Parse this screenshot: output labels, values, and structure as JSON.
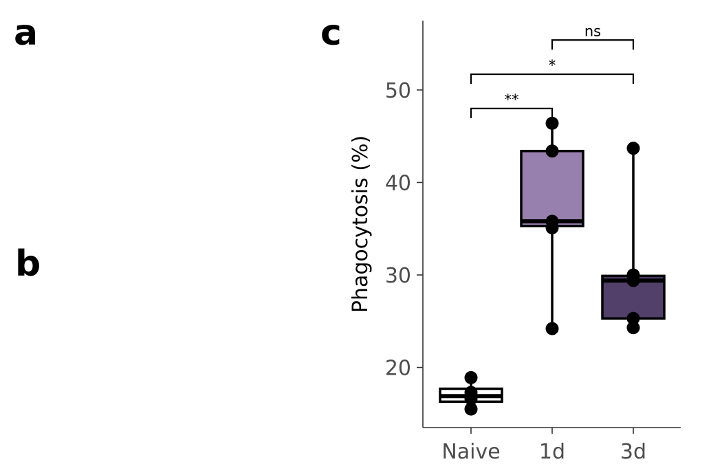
{
  "panels": {
    "a": "a",
    "b": "b",
    "c": "c"
  },
  "colors": {
    "naive": "#ffffff",
    "d1": "#9880ae",
    "d3": "#52406b",
    "outline": "#000000",
    "axis": "#333333",
    "tick_text": "#4d4d4d"
  },
  "chart_data": {
    "type": "box",
    "title": "",
    "xlabel": "",
    "ylabel": "Phagocytosis (%)",
    "categories": [
      "Naive",
      "1d",
      "3d"
    ],
    "ylim": [
      13.5,
      57.5
    ],
    "yticks": [
      20,
      30,
      40,
      50
    ],
    "boxes": [
      {
        "category": "Naive",
        "min": 15.5,
        "q1": 16.3,
        "median": 16.9,
        "q3": 17.7,
        "max": 18.9,
        "fill": "#ffffff"
      },
      {
        "category": "1d",
        "min": 24.2,
        "q1": 35.3,
        "median": 35.8,
        "q3": 43.4,
        "max": 46.4,
        "fill": "#9880ae"
      },
      {
        "category": "3d",
        "min": 24.3,
        "q1": 25.3,
        "median": 29.4,
        "q3": 29.9,
        "max": 43.7,
        "fill": "#52406b",
        "outliers": [
          43.7
        ]
      }
    ],
    "points": [
      {
        "category": "Naive",
        "values": [
          18.9,
          17.3,
          16.6,
          15.5
        ]
      },
      {
        "category": "1d",
        "values": [
          46.4,
          43.4,
          35.8,
          35.1,
          24.2
        ]
      },
      {
        "category": "3d",
        "values": [
          43.7,
          30.0,
          29.4,
          25.3,
          24.3
        ]
      }
    ],
    "comparisons": [
      {
        "from": "Naive",
        "to": "1d",
        "label": "**",
        "y": 48.0
      },
      {
        "from": "Naive",
        "to": "3d",
        "label": "*",
        "y": 51.7
      },
      {
        "from": "1d",
        "to": "3d",
        "label": "ns",
        "y": 55.4
      }
    ]
  }
}
